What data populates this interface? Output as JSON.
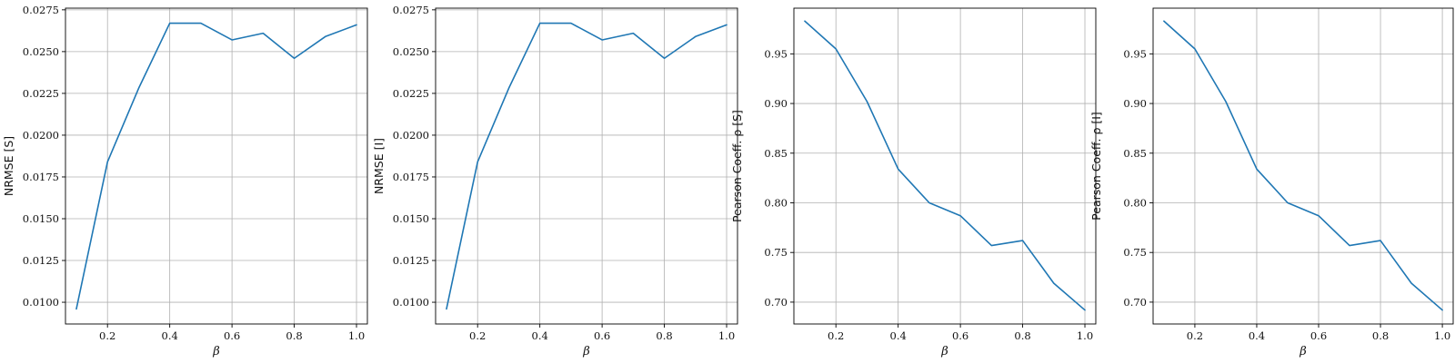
{
  "colors": {
    "series": "#1f77b4",
    "grid": "#b0b0b0",
    "frame": "#000000"
  },
  "chart_data": [
    {
      "type": "line",
      "xlabel": "β",
      "ylabel": "NRMSE [S]",
      "xlim": [
        0.065,
        1.035
      ],
      "ylim": [
        0.0087,
        0.0276
      ],
      "xticks": [
        0.2,
        0.4,
        0.6,
        0.8,
        1.0
      ],
      "xtick_labels": [
        "0.2",
        "0.4",
        "0.6",
        "0.8",
        "1.0"
      ],
      "yticks": [
        0.01,
        0.0125,
        0.015,
        0.0175,
        0.02,
        0.0225,
        0.025,
        0.0275
      ],
      "ytick_labels": [
        "0.0100",
        "0.0125",
        "0.0150",
        "0.0175",
        "0.0200",
        "0.0225",
        "0.0250",
        "0.0275"
      ],
      "grid": true,
      "x": [
        0.1,
        0.2,
        0.3,
        0.4,
        0.5,
        0.6,
        0.7,
        0.8,
        0.9,
        1.0
      ],
      "series": [
        {
          "values": [
            0.0096,
            0.0184,
            0.0228,
            0.0267,
            0.0267,
            0.0257,
            0.0261,
            0.0246,
            0.0259,
            0.0266
          ]
        }
      ]
    },
    {
      "type": "line",
      "xlabel": "β",
      "ylabel": "NRMSE [I]",
      "xlim": [
        0.065,
        1.035
      ],
      "ylim": [
        0.0087,
        0.0276
      ],
      "xticks": [
        0.2,
        0.4,
        0.6,
        0.8,
        1.0
      ],
      "xtick_labels": [
        "0.2",
        "0.4",
        "0.6",
        "0.8",
        "1.0"
      ],
      "yticks": [
        0.01,
        0.0125,
        0.015,
        0.0175,
        0.02,
        0.0225,
        0.025,
        0.0275
      ],
      "ytick_labels": [
        "0.0100",
        "0.0125",
        "0.0150",
        "0.0175",
        "0.0200",
        "0.0225",
        "0.0250",
        "0.0275"
      ],
      "grid": true,
      "x": [
        0.1,
        0.2,
        0.3,
        0.4,
        0.5,
        0.6,
        0.7,
        0.8,
        0.9,
        1.0
      ],
      "series": [
        {
          "values": [
            0.0096,
            0.0184,
            0.0228,
            0.0267,
            0.0267,
            0.0257,
            0.0261,
            0.0246,
            0.0259,
            0.0266
          ]
        }
      ]
    },
    {
      "type": "line",
      "xlabel": "β",
      "ylabel": "Pearson Coeff.  ρ [S]",
      "xlim": [
        0.065,
        1.035
      ],
      "ylim": [
        0.678,
        0.996
      ],
      "xticks": [
        0.2,
        0.4,
        0.6,
        0.8,
        1.0
      ],
      "xtick_labels": [
        "0.2",
        "0.4",
        "0.6",
        "0.8",
        "1.0"
      ],
      "yticks": [
        0.7,
        0.75,
        0.8,
        0.85,
        0.9,
        0.95
      ],
      "ytick_labels": [
        "0.70",
        "0.75",
        "0.80",
        "0.85",
        "0.90",
        "0.95"
      ],
      "grid": true,
      "x": [
        0.1,
        0.2,
        0.3,
        0.4,
        0.5,
        0.6,
        0.7,
        0.8,
        0.9,
        1.0
      ],
      "series": [
        {
          "values": [
            0.983,
            0.955,
            0.902,
            0.834,
            0.8,
            0.787,
            0.757,
            0.762,
            0.719,
            0.692
          ]
        }
      ]
    },
    {
      "type": "line",
      "xlabel": "β",
      "ylabel": "Pearson Coeff.  ρ [I]",
      "xlim": [
        0.065,
        1.035
      ],
      "ylim": [
        0.678,
        0.996
      ],
      "xticks": [
        0.2,
        0.4,
        0.6,
        0.8,
        1.0
      ],
      "xtick_labels": [
        "0.2",
        "0.4",
        "0.6",
        "0.8",
        "1.0"
      ],
      "yticks": [
        0.7,
        0.75,
        0.8,
        0.85,
        0.9,
        0.95
      ],
      "ytick_labels": [
        "0.70",
        "0.75",
        "0.80",
        "0.85",
        "0.90",
        "0.95"
      ],
      "grid": true,
      "x": [
        0.1,
        0.2,
        0.3,
        0.4,
        0.5,
        0.6,
        0.7,
        0.8,
        0.9,
        1.0
      ],
      "series": [
        {
          "values": [
            0.983,
            0.955,
            0.902,
            0.834,
            0.8,
            0.787,
            0.757,
            0.762,
            0.719,
            0.692
          ]
        }
      ]
    }
  ]
}
